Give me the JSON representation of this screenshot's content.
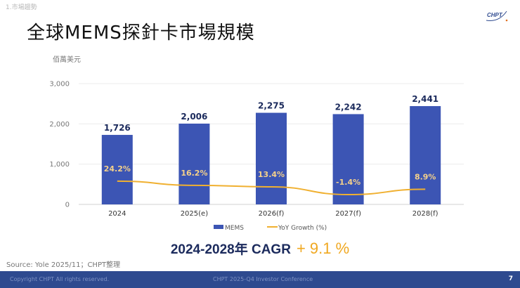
{
  "section_label": "1.市場趨勢",
  "logo_text": "CHPT",
  "title": "全球MEMS探針卡市場規模",
  "chart_data": {
    "type": "bar+line",
    "ylabel": "佰萬美元",
    "ylim": [
      0,
      3000
    ],
    "yticks": [
      "0",
      "1,000",
      "2,000",
      "3,000"
    ],
    "ytick_values": [
      0,
      1000,
      2000,
      3000
    ],
    "categories": [
      "2024",
      "2025(e)",
      "2026(f)",
      "2027(f)",
      "2028(f)"
    ],
    "series": [
      {
        "name": "MEMS",
        "type": "bar",
        "color": "#3c55b4",
        "values": [
          1726,
          2006,
          2275,
          2242,
          2441
        ],
        "labels": [
          "1,726",
          "2,006",
          "2,275",
          "2,242",
          "2,441"
        ]
      },
      {
        "name": "YoY Growth (%)",
        "type": "line",
        "axis": "secondary-hidden",
        "color": "#f0b030",
        "values": [
          24.2,
          16.2,
          13.4,
          -1.4,
          8.9
        ],
        "labels": [
          "24.2%",
          "16.2%",
          "13.4%",
          "-1.4%",
          "8.9%"
        ]
      }
    ],
    "grid": true,
    "legend": "bottom"
  },
  "cagr": {
    "label": "2024-2028年 CAGR",
    "value": "+ 9.1 %"
  },
  "source": "Source: Yole 2025/11；CHPT整理",
  "footer": {
    "copyright": "Copyright CHPT All rights reserved.",
    "event": "CHPT 2025-Q4 Investor Conference",
    "page": "7"
  }
}
